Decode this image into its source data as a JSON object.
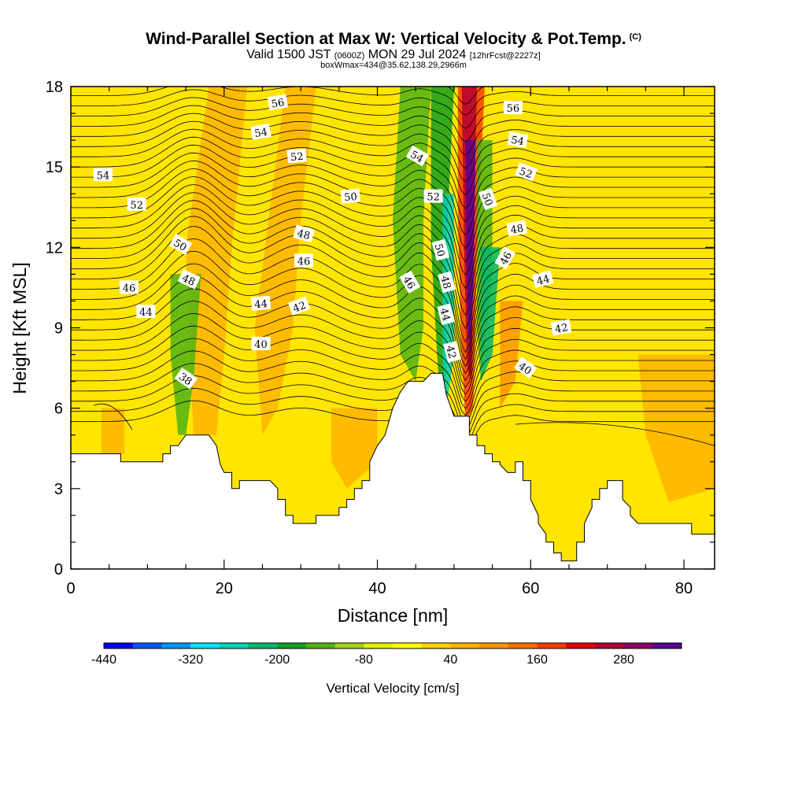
{
  "header": {
    "title": "Wind-Parallel Section at Max W: Vertical Velocity & Pot.Temp.",
    "title_mark": "(C)",
    "valid_prefix": "Valid 1500 JST",
    "valid_utc": "(0600Z)",
    "valid_date": "MON 29 Jul 2024",
    "forecast": "[12hrFcst@2227z]",
    "box_info": "boxWmax=434@35.62,138.29,2966m"
  },
  "colors": {
    "terrain": "#ffffff",
    "contour": "#000000",
    "background_fill": "#ffe500",
    "colorbar": [
      "#0000ff",
      "#0a55ff",
      "#0096ff",
      "#00e5ff",
      "#00d2b4",
      "#00b96e",
      "#14a01e",
      "#50b414",
      "#a0d214",
      "#e6f000",
      "#ffff00",
      "#ffd200",
      "#ffb400",
      "#ff9600",
      "#ff6e00",
      "#ff3c00",
      "#e60000",
      "#b40032",
      "#8c0064",
      "#5a0096"
    ]
  },
  "chart_data": {
    "type": "heatmap",
    "xlabel": "Distance [nm]",
    "ylabel": "Height [Kft MSL]",
    "xlim": [
      0,
      84
    ],
    "ylim": [
      0,
      18
    ],
    "xticks": [
      0,
      20,
      40,
      60,
      80
    ],
    "yticks": [
      0,
      3,
      6,
      9,
      12,
      15,
      18
    ],
    "colorbar": {
      "title": "Vertical Velocity [cm/s]",
      "levels": [
        -440,
        360
      ],
      "tick_values": [
        -440,
        -320,
        -200,
        -80,
        40,
        160,
        280
      ],
      "tick_labels": [
        "-440",
        "-320",
        "-200",
        "-80",
        "40",
        "160",
        "280"
      ]
    },
    "terrain": [
      [
        0,
        4.3
      ],
      [
        6.5,
        4.3
      ],
      [
        6.5,
        4.0
      ],
      [
        12,
        4.0
      ],
      [
        12,
        4.3
      ],
      [
        13,
        4.3
      ],
      [
        13,
        4.6
      ],
      [
        14,
        4.6
      ],
      [
        15,
        5.0
      ],
      [
        16,
        5.0
      ],
      [
        18,
        5.0
      ],
      [
        19,
        4.6
      ],
      [
        19.5,
        3.9
      ],
      [
        20,
        3.6
      ],
      [
        21,
        3.6
      ],
      [
        21,
        3.0
      ],
      [
        22,
        3.0
      ],
      [
        22,
        3.3
      ],
      [
        26,
        3.3
      ],
      [
        27,
        3.0
      ],
      [
        27,
        2.6
      ],
      [
        28,
        2.6
      ],
      [
        28,
        2.0
      ],
      [
        29,
        2.0
      ],
      [
        29,
        1.7
      ],
      [
        32,
        1.7
      ],
      [
        32,
        2.0
      ],
      [
        35,
        2.0
      ],
      [
        35,
        2.3
      ],
      [
        36,
        2.3
      ],
      [
        36,
        2.6
      ],
      [
        37,
        2.6
      ],
      [
        37,
        3.0
      ],
      [
        38,
        3.0
      ],
      [
        38,
        3.3
      ],
      [
        39,
        3.3
      ],
      [
        39,
        4.0
      ],
      [
        40,
        4.6
      ],
      [
        41,
        5.0
      ],
      [
        42,
        6.0
      ],
      [
        43,
        6.6
      ],
      [
        44,
        7.0
      ],
      [
        46,
        7.0
      ],
      [
        47,
        7.3
      ],
      [
        48.5,
        7.3
      ],
      [
        49,
        6.5
      ],
      [
        50,
        5.7
      ],
      [
        51,
        5.7
      ],
      [
        52,
        5.7
      ],
      [
        52,
        5.0
      ],
      [
        53,
        5.0
      ],
      [
        53,
        4.6
      ],
      [
        54,
        4.6
      ],
      [
        54,
        4.3
      ],
      [
        55,
        4.3
      ],
      [
        55,
        4.0
      ],
      [
        56,
        4.0
      ],
      [
        56,
        3.9
      ],
      [
        57,
        3.6
      ],
      [
        58,
        3.6
      ],
      [
        58,
        4.0
      ],
      [
        59,
        4.0
      ],
      [
        59,
        3.3
      ],
      [
        60,
        3.3
      ],
      [
        60,
        2.6
      ],
      [
        61,
        2.0
      ],
      [
        61,
        1.7
      ],
      [
        62,
        1.3
      ],
      [
        62,
        1.0
      ],
      [
        63,
        1.0
      ],
      [
        63,
        0.6
      ],
      [
        64,
        0.6
      ],
      [
        64,
        0.3
      ],
      [
        66,
        0.3
      ],
      [
        66,
        1.0
      ],
      [
        67,
        1.0
      ],
      [
        67,
        1.7
      ],
      [
        68,
        2.3
      ],
      [
        68,
        2.6
      ],
      [
        69,
        2.6
      ],
      [
        69,
        3.0
      ],
      [
        70,
        3.0
      ],
      [
        70,
        3.3
      ],
      [
        72,
        3.3
      ],
      [
        72,
        2.6
      ],
      [
        73,
        2.3
      ],
      [
        73,
        2.0
      ],
      [
        74,
        1.7
      ],
      [
        81,
        1.7
      ],
      [
        81,
        1.3
      ],
      [
        84,
        1.3
      ]
    ],
    "isentrope_labels": [
      {
        "text": "56",
        "x": 27,
        "y": 17.4,
        "rot": -10
      },
      {
        "text": "54",
        "x": 24.8,
        "y": 16.3,
        "rot": -10
      },
      {
        "text": "52",
        "x": 29.5,
        "y": 15.4,
        "rot": -5
      },
      {
        "text": "54",
        "x": 4.2,
        "y": 14.7,
        "rot": 0
      },
      {
        "text": "52",
        "x": 8.6,
        "y": 13.6,
        "rot": 0
      },
      {
        "text": "50",
        "x": 36.5,
        "y": 13.9,
        "rot": -5
      },
      {
        "text": "54",
        "x": 45.2,
        "y": 15.4,
        "rot": 30
      },
      {
        "text": "52",
        "x": 47.3,
        "y": 13.9,
        "rot": 0
      },
      {
        "text": "50",
        "x": 54.4,
        "y": 13.8,
        "rot": 70
      },
      {
        "text": "56",
        "x": 57.7,
        "y": 17.2,
        "rot": 0
      },
      {
        "text": "54",
        "x": 58.3,
        "y": 16.0,
        "rot": 10
      },
      {
        "text": "52",
        "x": 59.4,
        "y": 14.8,
        "rot": 20
      },
      {
        "text": "48",
        "x": 58.2,
        "y": 12.7,
        "rot": -10
      },
      {
        "text": "46",
        "x": 56.7,
        "y": 11.6,
        "rot": -60
      },
      {
        "text": "48",
        "x": 30.4,
        "y": 12.5,
        "rot": 15
      },
      {
        "text": "50",
        "x": 14.3,
        "y": 12.1,
        "rot": 30
      },
      {
        "text": "46",
        "x": 30.4,
        "y": 11.5,
        "rot": 0
      },
      {
        "text": "48",
        "x": 15.4,
        "y": 10.8,
        "rot": 25
      },
      {
        "text": "46",
        "x": 7.6,
        "y": 10.5,
        "rot": 0
      },
      {
        "text": "44",
        "x": 9.8,
        "y": 9.6,
        "rot": 0
      },
      {
        "text": "44",
        "x": 24.8,
        "y": 9.9,
        "rot": -5
      },
      {
        "text": "42",
        "x": 29.8,
        "y": 9.8,
        "rot": -20
      },
      {
        "text": "46",
        "x": 44.2,
        "y": 10.7,
        "rot": 60
      },
      {
        "text": "50",
        "x": 48.2,
        "y": 11.9,
        "rot": 75
      },
      {
        "text": "48",
        "x": 49.0,
        "y": 10.7,
        "rot": 75
      },
      {
        "text": "44",
        "x": 48.9,
        "y": 9.5,
        "rot": 75
      },
      {
        "text": "42",
        "x": 49.7,
        "y": 8.1,
        "rot": 75
      },
      {
        "text": "44",
        "x": 61.6,
        "y": 10.8,
        "rot": -15
      },
      {
        "text": "42",
        "x": 64.0,
        "y": 9.0,
        "rot": -10
      },
      {
        "text": "40",
        "x": 24.8,
        "y": 8.4,
        "rot": 0
      },
      {
        "text": "40",
        "x": 59.3,
        "y": 7.5,
        "rot": 35
      },
      {
        "text": "38",
        "x": 15.0,
        "y": 7.1,
        "rot": 35
      }
    ]
  }
}
